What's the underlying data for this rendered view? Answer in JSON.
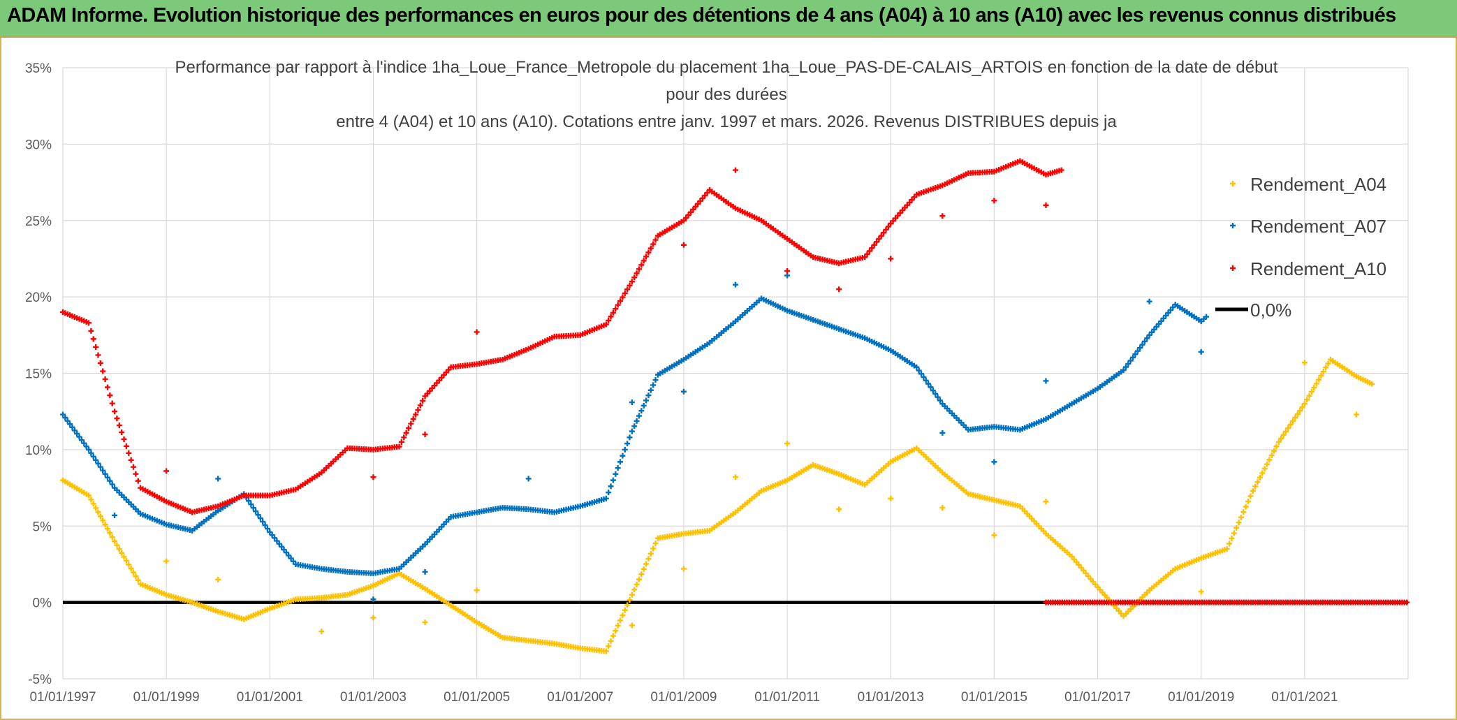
{
  "header": {
    "title": "ADAM Informe. Evolution historique des performances en euros pour des détentions de 4 ans (A04) à 10 ans (A10) avec les revenus connus distribués"
  },
  "colors": {
    "banner": "#7cc97a",
    "A04": "#ffc000",
    "A07": "#0070c0",
    "A10": "#ff0000",
    "zero": "#000000",
    "grid": "#d9d9d9"
  },
  "chart_data": {
    "type": "scatter",
    "title_lines": [
      "Performance par rapport à l'indice 1ha_Loue_France_Metropole  du placement 1ha_Loue_PAS-DE-CALAIS_ARTOIS en fonction de la date de début",
      "pour des durées",
      "entre 4 (A04) et 10 ans (A10). Cotations entre janv. 1997 et mars. 2026. Revenus DISTRIBUES depuis ja"
    ],
    "xlabel": "",
    "ylabel": "",
    "xlim": [
      1997.0,
      2023.0
    ],
    "ylim": [
      -5,
      35
    ],
    "y_ticks": [
      35,
      30,
      25,
      20,
      15,
      10,
      5,
      0,
      -5
    ],
    "y_tick_labels": [
      "35%",
      "30%",
      "25%",
      "20%",
      "15%",
      "10%",
      "5%",
      "0%",
      "-5%"
    ],
    "x_ticks": [
      1997,
      1999,
      2001,
      2003,
      2005,
      2007,
      2009,
      2011,
      2013,
      2015,
      2017,
      2019,
      2021
    ],
    "x_tick_labels": [
      "01/01/1997",
      "01/01/1999",
      "01/01/2001",
      "01/01/2003",
      "01/01/2005",
      "01/01/2007",
      "01/01/2009",
      "01/01/2011",
      "01/01/2013",
      "01/01/2015",
      "01/01/2017",
      "01/01/2019",
      "01/01/2021"
    ],
    "reference_line": {
      "name": "0,0%",
      "y": 0
    },
    "series": [
      {
        "name": "Rendement_A04",
        "x": [
          1997.0,
          1997.5,
          1998.0,
          1998.5,
          1999.0,
          1999.5,
          2000.0,
          2000.5,
          2001.0,
          2001.5,
          2002.0,
          2002.5,
          2003.0,
          2003.5,
          2004.0,
          2004.5,
          2005.0,
          2005.5,
          2006.0,
          2006.5,
          2007.0,
          2007.5,
          2008.0,
          2008.5,
          2009.0,
          2009.5,
          2010.0,
          2010.5,
          2011.0,
          2011.5,
          2012.0,
          2012.5,
          2013.0,
          2013.5,
          2014.0,
          2014.5,
          2015.0,
          2015.5,
          2016.0,
          2016.5,
          2017.0,
          2017.5,
          2018.0,
          2018.5,
          2019.0,
          2019.5,
          2020.0,
          2020.5,
          2021.0,
          2021.5,
          2022.0,
          2022.3
        ],
        "values": [
          8.0,
          7.0,
          4.0,
          1.2,
          0.5,
          0.0,
          -0.6,
          -1.1,
          -0.4,
          0.2,
          0.3,
          0.5,
          1.1,
          1.9,
          0.9,
          -0.2,
          -1.3,
          -2.3,
          -2.5,
          -2.7,
          -3.0,
          -3.2,
          0.5,
          4.2,
          4.5,
          4.7,
          5.9,
          7.3,
          8.0,
          9.0,
          8.4,
          7.7,
          9.2,
          10.1,
          8.5,
          7.1,
          6.7,
          6.3,
          4.5,
          3.0,
          1.0,
          -0.9,
          0.8,
          2.2,
          2.9,
          3.5,
          7.3,
          10.5,
          13.0,
          15.9,
          14.8,
          14.3
        ],
        "outliers_x": [
          1999.0,
          2000.0,
          2002.0,
          2003.0,
          2004.0,
          2005.0,
          2008.0,
          2009.0,
          2010.0,
          2011.0,
          2012.0,
          2013.0,
          2014.0,
          2015.0,
          2016.0,
          2019.0,
          2021.0,
          2022.0
        ],
        "outliers_y": [
          2.7,
          1.5,
          -1.9,
          -1.0,
          -1.3,
          0.8,
          -1.5,
          2.2,
          8.2,
          10.4,
          6.1,
          6.8,
          6.2,
          4.4,
          6.6,
          0.7,
          15.7,
          12.3
        ]
      },
      {
        "name": "Rendement_A07",
        "x": [
          1997.0,
          1997.5,
          1998.0,
          1998.5,
          1999.0,
          1999.5,
          2000.0,
          2000.5,
          2001.0,
          2001.5,
          2002.0,
          2002.5,
          2003.0,
          2003.5,
          2004.0,
          2004.5,
          2005.0,
          2005.5,
          2006.0,
          2006.5,
          2007.0,
          2007.5,
          2008.0,
          2008.5,
          2009.0,
          2009.5,
          2010.0,
          2010.5,
          2011.0,
          2011.5,
          2012.0,
          2012.5,
          2013.0,
          2013.5,
          2014.0,
          2014.5,
          2015.0,
          2015.5,
          2016.0,
          2016.5,
          2017.0,
          2017.5,
          2018.0,
          2018.5,
          2019.0,
          2019.1
        ],
        "values": [
          12.3,
          10.0,
          7.5,
          5.8,
          5.1,
          4.7,
          6.0,
          7.1,
          4.6,
          2.5,
          2.2,
          2.0,
          1.9,
          2.2,
          3.8,
          5.6,
          5.9,
          6.2,
          6.1,
          5.9,
          6.3,
          6.8,
          11.2,
          14.9,
          15.9,
          17.0,
          18.4,
          19.9,
          19.1,
          18.5,
          17.9,
          17.3,
          16.5,
          15.4,
          13.0,
          11.3,
          11.5,
          11.3,
          12.0,
          13.0,
          14.0,
          15.2,
          17.5,
          19.5,
          18.4,
          18.7
        ],
        "outliers_x": [
          1998.0,
          2000.0,
          2003.0,
          2004.0,
          2006.0,
          2008.0,
          2009.0,
          2010.0,
          2011.0,
          2014.0,
          2015.0,
          2016.0,
          2018.0,
          2019.0
        ],
        "outliers_y": [
          5.7,
          8.1,
          0.2,
          2.0,
          8.1,
          13.1,
          13.8,
          20.8,
          21.4,
          11.1,
          9.2,
          14.5,
          19.7,
          16.4
        ]
      },
      {
        "name": "Rendement_A10",
        "x": [
          1997.0,
          1997.5,
          1998.0,
          1998.5,
          1999.0,
          1999.5,
          2000.0,
          2000.5,
          2001.0,
          2001.5,
          2002.0,
          2002.5,
          2003.0,
          2003.5,
          2004.0,
          2004.5,
          2005.0,
          2005.5,
          2006.0,
          2006.5,
          2007.0,
          2007.5,
          2008.0,
          2008.5,
          2009.0,
          2009.5,
          2010.0,
          2010.5,
          2011.0,
          2011.5,
          2012.0,
          2012.5,
          2013.0,
          2013.5,
          2014.0,
          2014.5,
          2015.0,
          2015.5,
          2016.0,
          2016.3
        ],
        "values": [
          19.0,
          18.3,
          12.5,
          7.5,
          6.6,
          5.9,
          6.3,
          7.0,
          7.0,
          7.4,
          8.5,
          10.1,
          10.0,
          10.2,
          13.5,
          15.4,
          15.6,
          15.9,
          16.6,
          17.4,
          17.5,
          18.2,
          21.0,
          24.0,
          25.0,
          27.0,
          25.8,
          25.0,
          23.8,
          22.6,
          22.2,
          22.6,
          24.8,
          26.7,
          27.3,
          28.1,
          28.2,
          28.9,
          28.0,
          28.3
        ],
        "outliers_x": [
          1999.0,
          2003.0,
          2004.0,
          2005.0,
          2009.0,
          2010.0,
          2011.0,
          2012.0,
          2013.0,
          2014.0,
          2015.0,
          2016.0
        ],
        "outliers_y": [
          8.6,
          8.2,
          11.0,
          17.7,
          23.4,
          28.3,
          21.7,
          20.5,
          22.5,
          25.3,
          26.3,
          26.0
        ],
        "flat_zero_from": 2016.0,
        "flat_zero_to": 2023.0
      }
    ],
    "legend": {
      "position": "right",
      "entries": [
        "Rendement_A04",
        "Rendement_A07",
        "Rendement_A10",
        "0,0%"
      ]
    }
  }
}
